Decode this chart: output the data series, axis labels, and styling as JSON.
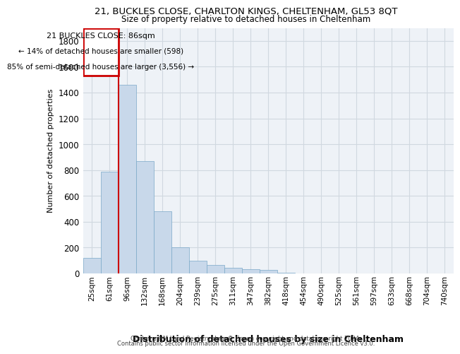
{
  "title_line1": "21, BUCKLES CLOSE, CHARLTON KINGS, CHELTENHAM, GL53 8QT",
  "title_line2": "Size of property relative to detached houses in Cheltenham",
  "xlabel": "Distribution of detached houses by size in Cheltenham",
  "ylabel": "Number of detached properties",
  "footer_line1": "Contains HM Land Registry data © Crown copyright and database right 2024.",
  "footer_line2": "Contains public sector information licensed under the Open Government Licence v3.0.",
  "annotation_title": "21 BUCKLES CLOSE: 86sqm",
  "annotation_line1": "← 14% of detached houses are smaller (598)",
  "annotation_line2": "85% of semi-detached houses are larger (3,556) →",
  "bar_color": "#c8d8ea",
  "bar_edge_color": "#7aa8c8",
  "annotation_box_color": "#cc0000",
  "property_line_color": "#cc0000",
  "categories": [
    "25sqm",
    "61sqm",
    "96sqm",
    "132sqm",
    "168sqm",
    "204sqm",
    "239sqm",
    "275sqm",
    "311sqm",
    "347sqm",
    "382sqm",
    "418sqm",
    "454sqm",
    "490sqm",
    "525sqm",
    "561sqm",
    "597sqm",
    "633sqm",
    "668sqm",
    "704sqm",
    "740sqm"
  ],
  "values": [
    120,
    790,
    1460,
    870,
    480,
    200,
    100,
    65,
    45,
    35,
    30,
    5,
    0,
    0,
    0,
    0,
    0,
    0,
    0,
    0,
    0
  ],
  "ylim": [
    0,
    1900
  ],
  "yticks": [
    0,
    200,
    400,
    600,
    800,
    1000,
    1200,
    1400,
    1600,
    1800
  ],
  "grid_color": "#d0d8e0",
  "bg_color": "#eef2f7",
  "property_line_x": 1.5
}
